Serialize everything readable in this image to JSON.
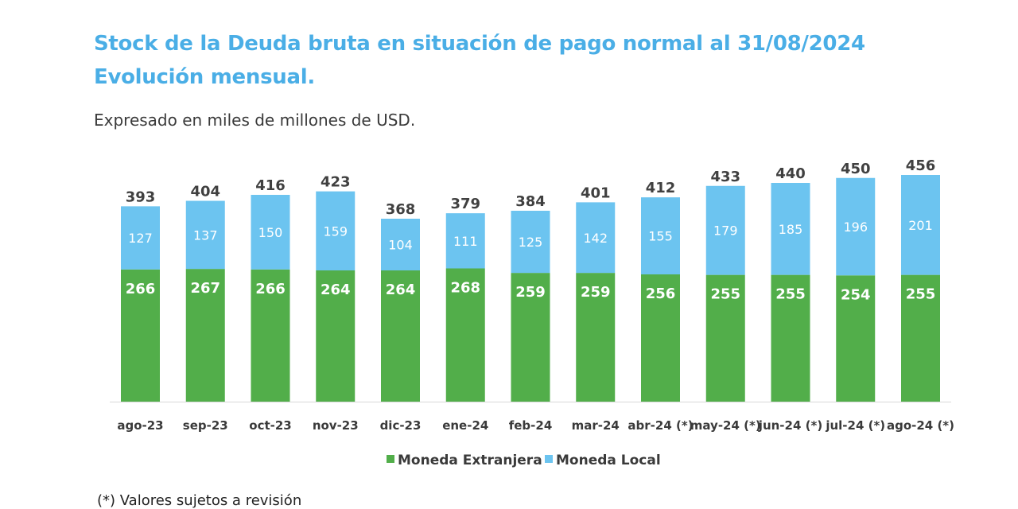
{
  "title_line1": "Stock de la Deuda bruta en situación de pago normal al 31/08/2024",
  "title_line2": "Evolución mensual.",
  "subtitle": "Expresado en miles de millones de USD.",
  "footnote": "(*) Valores sujetos a revisión",
  "colors": {
    "title": "#4aaee6",
    "moneda_extranjera": "#52ae4a",
    "moneda_local": "#6cc4f0",
    "total_label": "#404040",
    "axis_label": "#3a3a3a",
    "axis_line": "#d9d9d9"
  },
  "chart_data": {
    "type": "bar",
    "stacked": true,
    "categories": [
      "ago-23",
      "sep-23",
      "oct-23",
      "nov-23",
      "dic-23",
      "ene-24",
      "feb-24",
      "mar-24",
      "abr-24 (*)",
      "may-24 (*)",
      "jun-24 (*)",
      "jul-24 (*)",
      "ago-24 (*)"
    ],
    "series": [
      {
        "name": "Moneda Extranjera",
        "color": "#52ae4a",
        "values": [
          266,
          267,
          266,
          264,
          264,
          268,
          259,
          259,
          256,
          255,
          255,
          254,
          255
        ]
      },
      {
        "name": "Moneda Local",
        "color": "#6cc4f0",
        "values": [
          127,
          137,
          150,
          159,
          104,
          111,
          125,
          142,
          155,
          179,
          185,
          196,
          201
        ]
      }
    ],
    "totals": [
      393,
      404,
      416,
      423,
      368,
      379,
      384,
      401,
      412,
      433,
      440,
      450,
      456
    ],
    "ylim": [
      0,
      456
    ],
    "grid": false,
    "legend_position": "bottom-center"
  }
}
